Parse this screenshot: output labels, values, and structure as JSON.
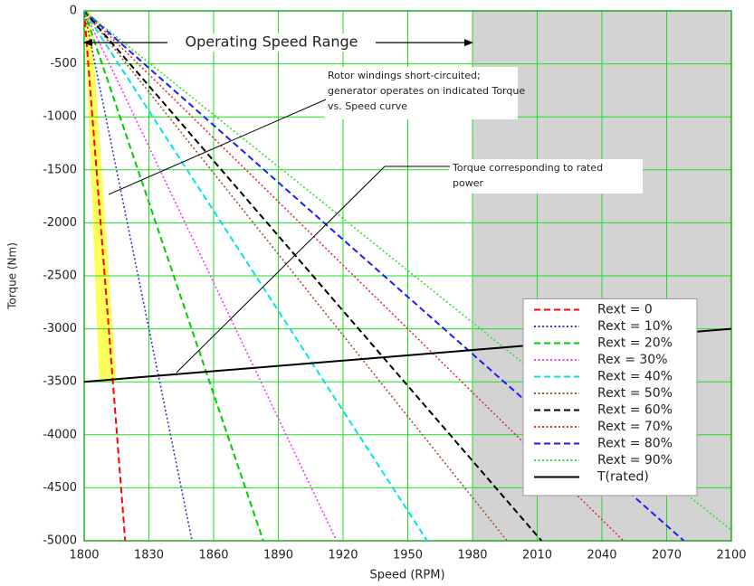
{
  "chart_data": {
    "type": "line",
    "xlabel": "Speed (RPM)",
    "ylabel": "Torque (Nm)",
    "xlim": [
      1800,
      2100
    ],
    "xticks": [
      1800,
      1830,
      1860,
      1890,
      1920,
      1950,
      1980,
      2010,
      2040,
      2070,
      2100
    ],
    "ylim": [
      -5000,
      0
    ],
    "yticks": [
      0,
      -500,
      -1000,
      -1500,
      -2000,
      -2500,
      -3000,
      -3500,
      -4000,
      -4500,
      -5000
    ],
    "grid": true,
    "legend": "lower right",
    "shade_xlim": [
      1980,
      2100
    ],
    "shade_color": "#d3d3d3",
    "band": {
      "color": "#ffff40",
      "x_left": [
        1800,
        1807
      ],
      "x_right": [
        1803,
        1815
      ],
      "y": [
        0,
        -3500
      ]
    },
    "annotations": [
      "Operating Speed Range",
      "Rotor windings short-circuited; generator operates on indicated Torque vs. Speed curve",
      "Torque corresponding to rated power"
    ],
    "range_arrow": [
      1800,
      1980,
      -300
    ],
    "series": [
      {
        "name": "Rext = 0",
        "color": "#ff0000",
        "dash": "dashed",
        "x": [
          1800,
          1819
        ],
        "values": [
          0,
          -5000
        ]
      },
      {
        "name": "Rext = 10%",
        "color": "#3333cc",
        "dash": "dotted",
        "x": [
          1800,
          1850
        ],
        "values": [
          0,
          -5000
        ]
      },
      {
        "name": "Rext = 20%",
        "color": "#00cc00",
        "dash": "dashed",
        "x": [
          1800,
          1883
        ],
        "values": [
          0,
          -5000
        ]
      },
      {
        "name": "Rex = 30%",
        "color": "#ff33ff",
        "dash": "dotted",
        "x": [
          1800,
          1917
        ],
        "values": [
          0,
          -5000
        ]
      },
      {
        "name": "Rext = 40%",
        "color": "#00e5e5",
        "dash": "dashed",
        "x": [
          1800,
          1959
        ],
        "values": [
          0,
          -5000
        ]
      },
      {
        "name": "Rext = 50%",
        "color": "#a0522d",
        "dash": "dotted",
        "x": [
          1800,
          1996
        ],
        "values": [
          0,
          -5000
        ]
      },
      {
        "name": "Rext = 60%",
        "color": "#000000",
        "dash": "dashed",
        "x": [
          1800,
          2012
        ],
        "values": [
          0,
          -5000
        ]
      },
      {
        "name": "Rext = 70%",
        "color": "#e03030",
        "dash": "dotted",
        "x": [
          1800,
          2050
        ],
        "values": [
          0,
          -5000
        ]
      },
      {
        "name": "Rext = 80%",
        "color": "#1a1aff",
        "dash": "dashed",
        "x": [
          1800,
          2078
        ],
        "values": [
          0,
          -5000
        ]
      },
      {
        "name": "Rext = 90%",
        "color": "#33dd33",
        "dash": "dotted",
        "x": [
          1800,
          2100
        ],
        "values": [
          0,
          -4900
        ]
      },
      {
        "name": "T(rated)",
        "color": "#000000",
        "dash": "solid",
        "x": [
          1800,
          2100
        ],
        "values": [
          -3500,
          -3000
        ]
      }
    ]
  }
}
